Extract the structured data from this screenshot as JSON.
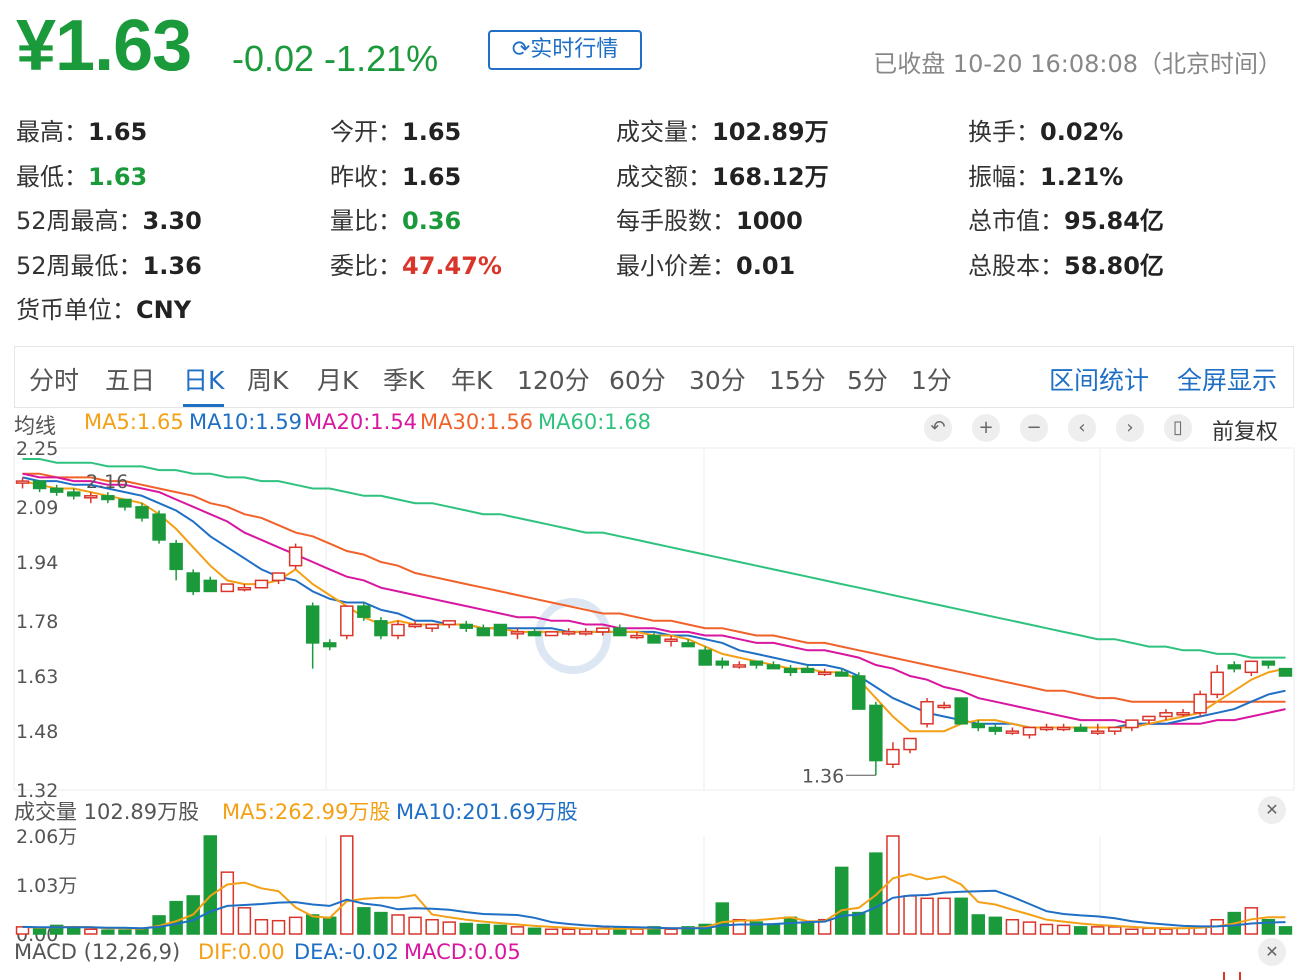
{
  "quote": {
    "price": "¥1.63",
    "change": "-0.02 -1.21%",
    "realtime_label": "实时行情",
    "status": "已收盘 10-20 16:08:08（北京时间）"
  },
  "stats": [
    {
      "label": "最高：",
      "value": "1.65",
      "color": ""
    },
    {
      "label": "今开：",
      "value": "1.65",
      "color": ""
    },
    {
      "label": "成交量：",
      "value": "102.89万",
      "color": ""
    },
    {
      "label": "换手：",
      "value": "0.02%",
      "color": ""
    },
    {
      "label": "最低：",
      "value": "1.63",
      "color": "green"
    },
    {
      "label": "昨收：",
      "value": "1.65",
      "color": ""
    },
    {
      "label": "成交额：",
      "value": "168.12万",
      "color": ""
    },
    {
      "label": "振幅：",
      "value": "1.21%",
      "color": ""
    },
    {
      "label": "52周最高：",
      "value": "3.30",
      "color": ""
    },
    {
      "label": "量比：",
      "value": "0.36",
      "color": "green"
    },
    {
      "label": "每手股数：",
      "value": "1000",
      "color": ""
    },
    {
      "label": "总市值：",
      "value": "95.84亿",
      "color": ""
    },
    {
      "label": "52周最低：",
      "value": "1.36",
      "color": ""
    },
    {
      "label": "委比：",
      "value": "47.47%",
      "color": "red"
    },
    {
      "label": "最小价差：",
      "value": "0.01",
      "color": ""
    },
    {
      "label": "总股本：",
      "value": "58.80亿",
      "color": ""
    },
    {
      "label": "货币单位：",
      "value": "CNY",
      "color": ""
    }
  ],
  "tabs": [
    "分时",
    "五日",
    "日K",
    "周K",
    "月K",
    "季K",
    "年K",
    "120分",
    "60分",
    "30分",
    "15分",
    "5分",
    "1分"
  ],
  "active_tab": "日K",
  "right_actions": {
    "range_stats": "区间统计",
    "fullscreen": "全屏显示"
  },
  "ma_legend": {
    "label": "均线",
    "ma5": "MA5:1.65",
    "ma10": "MA10:1.59",
    "ma20": "MA20:1.54",
    "ma30": "MA30:1.56",
    "ma60": "MA60:1.68"
  },
  "adjust_label": "前复权",
  "price_axis": [
    "2.25",
    "2.09",
    "1.94",
    "1.78",
    "1.63",
    "1.48",
    "1.32"
  ],
  "annotations": {
    "high": "2.16",
    "low": "1.36"
  },
  "volume": {
    "title": "成交量 102.89万股",
    "ma5": "MA5:262.99万股",
    "ma10": "MA10:201.69万股",
    "axis": [
      "2.06万",
      "1.03万",
      "0.00"
    ]
  },
  "macd": {
    "title": "MACD (12,26,9)",
    "dif": "DIF:0.00",
    "dea": "DEA:-0.02",
    "macd": "MACD:0.05"
  },
  "colors": {
    "up": "#d9352a",
    "down": "#1a9a3a",
    "accent": "#1f6fc5",
    "ma5": "#f4a015",
    "ma10": "#1f6fc5",
    "ma20": "#d8169f",
    "ma30": "#f0622a",
    "ma60": "#2ec27e"
  },
  "chart_data": {
    "type": "candlestick",
    "ylim": [
      1.32,
      2.25
    ],
    "candles": [
      [
        2.16,
        2.17,
        2.14,
        2.16
      ],
      [
        2.16,
        2.16,
        2.13,
        2.14
      ],
      [
        2.14,
        2.15,
        2.12,
        2.13
      ],
      [
        2.13,
        2.14,
        2.11,
        2.12
      ],
      [
        2.12,
        2.13,
        2.1,
        2.12
      ],
      [
        2.12,
        2.13,
        2.1,
        2.11
      ],
      [
        2.11,
        2.11,
        2.08,
        2.09
      ],
      [
        2.09,
        2.1,
        2.05,
        2.06
      ],
      [
        2.07,
        2.08,
        1.99,
        2.0
      ],
      [
        1.99,
        2.0,
        1.89,
        1.92
      ],
      [
        1.91,
        1.92,
        1.85,
        1.86
      ],
      [
        1.89,
        1.9,
        1.86,
        1.86
      ],
      [
        1.86,
        1.88,
        1.86,
        1.88
      ],
      [
        1.87,
        1.88,
        1.86,
        1.87
      ],
      [
        1.87,
        1.89,
        1.87,
        1.89
      ],
      [
        1.89,
        1.91,
        1.88,
        1.91
      ],
      [
        1.93,
        1.99,
        1.92,
        1.98
      ],
      [
        1.82,
        1.83,
        1.65,
        1.72
      ],
      [
        1.72,
        1.73,
        1.7,
        1.71
      ],
      [
        1.74,
        1.82,
        1.73,
        1.82
      ],
      [
        1.82,
        1.83,
        1.78,
        1.79
      ],
      [
        1.78,
        1.79,
        1.73,
        1.74
      ],
      [
        1.74,
        1.78,
        1.73,
        1.77
      ],
      [
        1.77,
        1.78,
        1.76,
        1.77
      ],
      [
        1.76,
        1.77,
        1.75,
        1.77
      ],
      [
        1.77,
        1.78,
        1.76,
        1.78
      ],
      [
        1.77,
        1.78,
        1.75,
        1.76
      ],
      [
        1.76,
        1.77,
        1.74,
        1.74
      ],
      [
        1.77,
        1.77,
        1.74,
        1.74
      ],
      [
        1.75,
        1.76,
        1.73,
        1.75
      ],
      [
        1.75,
        1.76,
        1.74,
        1.74
      ],
      [
        1.74,
        1.75,
        1.74,
        1.75
      ],
      [
        1.75,
        1.76,
        1.74,
        1.75
      ],
      [
        1.75,
        1.76,
        1.74,
        1.75
      ],
      [
        1.75,
        1.76,
        1.74,
        1.76
      ],
      [
        1.76,
        1.77,
        1.74,
        1.74
      ],
      [
        1.74,
        1.75,
        1.73,
        1.74
      ],
      [
        1.74,
        1.75,
        1.72,
        1.72
      ],
      [
        1.73,
        1.74,
        1.71,
        1.73
      ],
      [
        1.72,
        1.73,
        1.71,
        1.71
      ],
      [
        1.7,
        1.71,
        1.66,
        1.66
      ],
      [
        1.67,
        1.68,
        1.65,
        1.66
      ],
      [
        1.66,
        1.67,
        1.65,
        1.66
      ],
      [
        1.67,
        1.67,
        1.65,
        1.66
      ],
      [
        1.66,
        1.67,
        1.65,
        1.65
      ],
      [
        1.65,
        1.66,
        1.63,
        1.64
      ],
      [
        1.65,
        1.66,
        1.64,
        1.64
      ],
      [
        1.64,
        1.65,
        1.63,
        1.64
      ],
      [
        1.64,
        1.65,
        1.63,
        1.63
      ],
      [
        1.63,
        1.64,
        1.54,
        1.54
      ],
      [
        1.55,
        1.56,
        1.36,
        1.4
      ],
      [
        1.39,
        1.45,
        1.38,
        1.43
      ],
      [
        1.43,
        1.46,
        1.42,
        1.46
      ],
      [
        1.5,
        1.57,
        1.49,
        1.56
      ],
      [
        1.55,
        1.56,
        1.54,
        1.55
      ],
      [
        1.57,
        1.57,
        1.5,
        1.5
      ],
      [
        1.5,
        1.51,
        1.48,
        1.49
      ],
      [
        1.49,
        1.5,
        1.47,
        1.48
      ],
      [
        1.48,
        1.49,
        1.47,
        1.48
      ],
      [
        1.47,
        1.49,
        1.46,
        1.49
      ],
      [
        1.49,
        1.5,
        1.48,
        1.49
      ],
      [
        1.49,
        1.5,
        1.48,
        1.49
      ],
      [
        1.49,
        1.5,
        1.48,
        1.48
      ],
      [
        1.48,
        1.5,
        1.47,
        1.48
      ],
      [
        1.48,
        1.49,
        1.47,
        1.49
      ],
      [
        1.49,
        1.51,
        1.48,
        1.51
      ],
      [
        1.51,
        1.52,
        1.5,
        1.52
      ],
      [
        1.52,
        1.54,
        1.51,
        1.53
      ],
      [
        1.53,
        1.54,
        1.52,
        1.53
      ],
      [
        1.53,
        1.59,
        1.52,
        1.58
      ],
      [
        1.58,
        1.66,
        1.57,
        1.64
      ],
      [
        1.66,
        1.67,
        1.64,
        1.65
      ],
      [
        1.64,
        1.67,
        1.63,
        1.67
      ],
      [
        1.67,
        1.67,
        1.65,
        1.66
      ],
      [
        1.65,
        1.65,
        1.63,
        1.63
      ]
    ],
    "ma5": [
      2.16,
      2.15,
      2.14,
      2.14,
      2.13,
      2.12,
      2.11,
      2.1,
      2.07,
      2.03,
      1.98,
      1.93,
      1.89,
      1.88,
      1.88,
      1.89,
      1.92,
      1.88,
      1.85,
      1.82,
      1.79,
      1.77,
      1.78,
      1.77,
      1.77,
      1.77,
      1.77,
      1.76,
      1.76,
      1.75,
      1.75,
      1.75,
      1.75,
      1.75,
      1.75,
      1.75,
      1.75,
      1.74,
      1.74,
      1.73,
      1.71,
      1.69,
      1.68,
      1.67,
      1.66,
      1.65,
      1.65,
      1.64,
      1.64,
      1.62,
      1.57,
      1.52,
      1.48,
      1.48,
      1.48,
      1.5,
      1.51,
      1.51,
      1.5,
      1.49,
      1.49,
      1.49,
      1.49,
      1.49,
      1.49,
      1.49,
      1.5,
      1.51,
      1.52,
      1.53,
      1.56,
      1.59,
      1.62,
      1.64,
      1.65
    ],
    "ma10": [
      2.17,
      2.16,
      2.16,
      2.15,
      2.15,
      2.14,
      2.13,
      2.12,
      2.1,
      2.08,
      2.05,
      2.01,
      1.98,
      1.95,
      1.92,
      1.9,
      1.89,
      1.86,
      1.84,
      1.83,
      1.83,
      1.81,
      1.8,
      1.78,
      1.78,
      1.77,
      1.77,
      1.76,
      1.76,
      1.76,
      1.76,
      1.76,
      1.75,
      1.75,
      1.75,
      1.75,
      1.75,
      1.75,
      1.74,
      1.74,
      1.73,
      1.72,
      1.7,
      1.69,
      1.68,
      1.67,
      1.66,
      1.66,
      1.65,
      1.63,
      1.6,
      1.57,
      1.55,
      1.53,
      1.52,
      1.51,
      1.5,
      1.5,
      1.5,
      1.49,
      1.49,
      1.49,
      1.49,
      1.49,
      1.49,
      1.5,
      1.5,
      1.5,
      1.51,
      1.52,
      1.53,
      1.54,
      1.56,
      1.58,
      1.59
    ],
    "ma20": [
      2.18,
      2.17,
      2.17,
      2.16,
      2.16,
      2.15,
      2.15,
      2.14,
      2.13,
      2.11,
      2.09,
      2.07,
      2.05,
      2.02,
      2.0,
      1.98,
      1.96,
      1.94,
      1.92,
      1.9,
      1.89,
      1.87,
      1.86,
      1.85,
      1.84,
      1.83,
      1.82,
      1.81,
      1.8,
      1.79,
      1.79,
      1.78,
      1.78,
      1.77,
      1.77,
      1.76,
      1.76,
      1.76,
      1.75,
      1.75,
      1.74,
      1.74,
      1.73,
      1.72,
      1.72,
      1.71,
      1.7,
      1.7,
      1.69,
      1.68,
      1.66,
      1.65,
      1.63,
      1.62,
      1.6,
      1.59,
      1.57,
      1.56,
      1.55,
      1.54,
      1.53,
      1.52,
      1.51,
      1.51,
      1.51,
      1.5,
      1.5,
      1.5,
      1.5,
      1.5,
      1.51,
      1.51,
      1.52,
      1.53,
      1.54
    ],
    "ma30": [
      2.18,
      2.18,
      2.17,
      2.17,
      2.17,
      2.16,
      2.16,
      2.15,
      2.14,
      2.13,
      2.12,
      2.1,
      2.09,
      2.07,
      2.06,
      2.04,
      2.02,
      2.01,
      1.99,
      1.97,
      1.96,
      1.94,
      1.93,
      1.91,
      1.9,
      1.89,
      1.88,
      1.87,
      1.86,
      1.85,
      1.84,
      1.83,
      1.82,
      1.81,
      1.8,
      1.8,
      1.79,
      1.78,
      1.78,
      1.77,
      1.76,
      1.76,
      1.75,
      1.74,
      1.74,
      1.73,
      1.72,
      1.72,
      1.71,
      1.7,
      1.69,
      1.68,
      1.67,
      1.66,
      1.65,
      1.64,
      1.63,
      1.62,
      1.61,
      1.6,
      1.59,
      1.59,
      1.58,
      1.57,
      1.57,
      1.56,
      1.56,
      1.56,
      1.56,
      1.56,
      1.56,
      1.56,
      1.56,
      1.56,
      1.56
    ],
    "ma60": [
      2.22,
      2.22,
      2.21,
      2.21,
      2.21,
      2.2,
      2.2,
      2.2,
      2.19,
      2.19,
      2.18,
      2.18,
      2.17,
      2.17,
      2.16,
      2.16,
      2.15,
      2.14,
      2.14,
      2.13,
      2.12,
      2.12,
      2.11,
      2.1,
      2.1,
      2.09,
      2.08,
      2.07,
      2.07,
      2.06,
      2.05,
      2.04,
      2.03,
      2.02,
      2.02,
      2.01,
      2.0,
      1.99,
      1.98,
      1.97,
      1.96,
      1.95,
      1.94,
      1.93,
      1.92,
      1.91,
      1.9,
      1.89,
      1.88,
      1.87,
      1.86,
      1.85,
      1.84,
      1.83,
      1.82,
      1.81,
      1.8,
      1.79,
      1.78,
      1.77,
      1.76,
      1.75,
      1.74,
      1.73,
      1.73,
      1.72,
      1.71,
      1.71,
      1.7,
      1.7,
      1.69,
      1.69,
      1.68,
      1.68,
      1.68
    ],
    "volume": [
      0.15,
      0.1,
      0.18,
      0.15,
      0.1,
      0.08,
      0.08,
      0.12,
      0.38,
      0.68,
      0.8,
      2.06,
      1.3,
      0.55,
      0.3,
      0.28,
      0.35,
      0.4,
      0.35,
      2.06,
      0.55,
      0.45,
      0.4,
      0.35,
      0.3,
      0.25,
      0.22,
      0.2,
      0.18,
      0.15,
      0.12,
      0.1,
      0.1,
      0.1,
      0.12,
      0.12,
      0.1,
      0.15,
      0.1,
      0.15,
      0.2,
      0.65,
      0.3,
      0.25,
      0.2,
      0.35,
      0.25,
      0.3,
      1.4,
      0.45,
      1.7,
      2.06,
      0.8,
      0.75,
      0.75,
      0.75,
      0.4,
      0.35,
      0.3,
      0.25,
      0.2,
      0.18,
      0.15,
      0.15,
      0.15,
      0.1,
      0.12,
      0.1,
      0.12,
      0.15,
      0.3,
      0.45,
      0.55,
      0.3,
      0.15
    ],
    "vol_ma5": [
      0.15,
      0.13,
      0.14,
      0.15,
      0.14,
      0.12,
      0.12,
      0.11,
      0.17,
      0.27,
      0.41,
      0.8,
      1.04,
      1.08,
      0.96,
      0.9,
      0.56,
      0.37,
      0.34,
      0.69,
      0.74,
      0.76,
      0.76,
      0.82,
      0.41,
      0.35,
      0.3,
      0.26,
      0.23,
      0.2,
      0.17,
      0.15,
      0.13,
      0.11,
      0.11,
      0.11,
      0.11,
      0.12,
      0.12,
      0.12,
      0.14,
      0.25,
      0.28,
      0.29,
      0.32,
      0.35,
      0.27,
      0.27,
      0.5,
      0.55,
      0.82,
      1.17,
      1.26,
      1.15,
      1.21,
      1.04,
      0.67,
      0.62,
      0.51,
      0.41,
      0.3,
      0.26,
      0.22,
      0.19,
      0.17,
      0.15,
      0.13,
      0.12,
      0.12,
      0.13,
      0.16,
      0.22,
      0.31,
      0.35,
      0.35
    ],
    "vol_ma10": [
      0.15,
      0.14,
      0.14,
      0.14,
      0.14,
      0.13,
      0.13,
      0.12,
      0.15,
      0.21,
      0.29,
      0.47,
      0.59,
      0.61,
      0.63,
      0.66,
      0.67,
      0.62,
      0.59,
      0.72,
      0.64,
      0.6,
      0.52,
      0.54,
      0.53,
      0.51,
      0.46,
      0.42,
      0.41,
      0.4,
      0.34,
      0.25,
      0.21,
      0.18,
      0.16,
      0.15,
      0.14,
      0.13,
      0.12,
      0.12,
      0.12,
      0.18,
      0.2,
      0.2,
      0.21,
      0.23,
      0.25,
      0.26,
      0.38,
      0.41,
      0.56,
      0.76,
      0.81,
      0.82,
      0.87,
      0.89,
      0.9,
      0.91,
      0.78,
      0.63,
      0.48,
      0.42,
      0.39,
      0.37,
      0.33,
      0.27,
      0.23,
      0.2,
      0.17,
      0.16,
      0.16,
      0.18,
      0.22,
      0.24,
      0.25
    ]
  }
}
